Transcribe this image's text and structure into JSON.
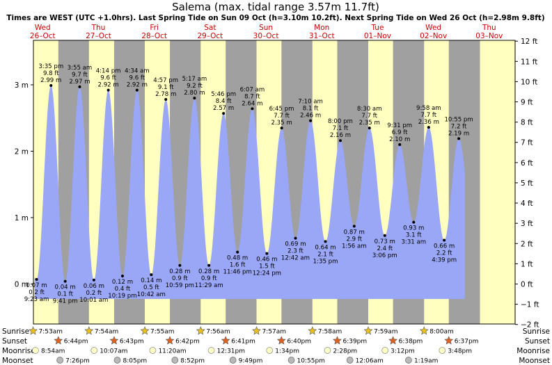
{
  "header": {
    "title": "Salema (max. tidal range 3.57m 11.7ft)",
    "subtitle": "Times are WEST (UTC +1.0hrs). Last Spring Tide on Sun 09 Oct (h=3.10m 10.2ft). Next Spring Tide on Wed 26 Oct (h=2.98m 9.8ft)"
  },
  "days": [
    {
      "name": "Wed",
      "date": "26–Oct"
    },
    {
      "name": "Thu",
      "date": "27–Oct"
    },
    {
      "name": "Fri",
      "date": "28–Oct"
    },
    {
      "name": "Sat",
      "date": "29–Oct"
    },
    {
      "name": "Sun",
      "date": "30–Oct"
    },
    {
      "name": "Mon",
      "date": "31–Oct"
    },
    {
      "name": "Tue",
      "date": "01–Nov"
    },
    {
      "name": "Wed",
      "date": "02–Nov"
    },
    {
      "name": "Thu",
      "date": "03–Nov"
    }
  ],
  "chart_data": {
    "type": "area",
    "title": "Salema (max. tidal range 3.57m 11.7ft)",
    "x_unit": "hours from 26-Oct 00:00 (WEST)",
    "y_left_unit": "m",
    "y_right_unit": "ft",
    "ylim_m": [
      -0.3,
      3.3
    ],
    "left_ticks": [
      "0 m",
      "1 m",
      "2 m",
      "3 m"
    ],
    "right_ticks": [
      "−2 ft",
      "−1 ft",
      "0 ft",
      "1 ft",
      "2 ft",
      "3 ft",
      "4 ft",
      "5 ft",
      "6 ft",
      "7 ft",
      "8 ft",
      "9 ft",
      "10 ft",
      "11 ft",
      "12 ft"
    ],
    "grid": false,
    "tides": [
      {
        "type": "high",
        "t": -3.5,
        "h": 2.95
      },
      {
        "type": "low",
        "t": 9.383,
        "h": 0.07,
        "time": "9:23 am",
        "m": "0.07 m",
        "ft": "0.2 ft"
      },
      {
        "type": "high",
        "t": 15.583,
        "h": 2.99,
        "time": "3:35 pm",
        "m": "2.99 m",
        "ft": "9.8 ft"
      },
      {
        "type": "low",
        "t": 21.683,
        "h": 0.04,
        "time": "9:41 pm",
        "m": "0.04 m",
        "ft": "0.1 ft"
      },
      {
        "type": "high",
        "t": 27.917,
        "h": 2.97,
        "time": "3:55 am",
        "m": "2.97 m",
        "ft": "9.7 ft"
      },
      {
        "type": "low",
        "t": 34.017,
        "h": 0.06,
        "time": "10:01 am",
        "m": "0.06 m",
        "ft": "0.2 ft"
      },
      {
        "type": "high",
        "t": 40.233,
        "h": 2.92,
        "time": "4:14 pm",
        "m": "2.92 m",
        "ft": "9.6 ft"
      },
      {
        "type": "low",
        "t": 46.317,
        "h": 0.12,
        "time": "10:19 pm",
        "m": "0.12 m",
        "ft": "0.4 ft"
      },
      {
        "type": "high",
        "t": 52.567,
        "h": 2.92,
        "time": "4:34 am",
        "m": "2.92 m",
        "ft": "9.6 ft"
      },
      {
        "type": "low",
        "t": 58.7,
        "h": 0.14,
        "time": "10:42 am",
        "m": "0.14 m",
        "ft": "0.5 ft"
      },
      {
        "type": "high",
        "t": 64.95,
        "h": 2.78,
        "time": "4:57 pm",
        "m": "2.78 m",
        "ft": "9.1 ft"
      },
      {
        "type": "low",
        "t": 70.983,
        "h": 0.28,
        "time": "10:59 pm",
        "m": "0.28 m",
        "ft": "0.9 ft"
      },
      {
        "type": "high",
        "t": 77.283,
        "h": 2.8,
        "time": "5:17 am",
        "m": "2.80 m",
        "ft": "9.2 ft"
      },
      {
        "type": "low",
        "t": 83.483,
        "h": 0.28,
        "time": "11:29 am",
        "m": "0.28 m",
        "ft": "0.9 ft"
      },
      {
        "type": "high",
        "t": 89.767,
        "h": 2.57,
        "time": "5:46 pm",
        "m": "2.57 m",
        "ft": "8.4 ft"
      },
      {
        "type": "low",
        "t": 95.767,
        "h": 0.48,
        "time": "11:46 pm",
        "m": "0.48 m",
        "ft": "1.6 ft"
      },
      {
        "type": "high",
        "t": 102.117,
        "h": 2.64,
        "time": "6:07 am",
        "m": "2.64 m",
        "ft": "8.7 ft"
      },
      {
        "type": "low",
        "t": 108.4,
        "h": 0.46,
        "time": "12:24 pm",
        "m": "0.46 m",
        "ft": "1.5 ft"
      },
      {
        "type": "high",
        "t": 114.75,
        "h": 2.35,
        "time": "6:45 pm",
        "m": "2.35 m",
        "ft": "7.7 ft"
      },
      {
        "type": "low",
        "t": 120.7,
        "h": 0.69,
        "time": "12:42 am",
        "m": "0.69 m",
        "ft": "2.3 ft"
      },
      {
        "type": "high",
        "t": 127.167,
        "h": 2.46,
        "time": "7:10 am",
        "m": "2.46 m",
        "ft": "8.1 ft"
      },
      {
        "type": "low",
        "t": 133.583,
        "h": 0.64,
        "time": "1:35 pm",
        "m": "0.64 m",
        "ft": "2.1 ft"
      },
      {
        "type": "high",
        "t": 140.0,
        "h": 2.16,
        "time": "8:00 pm",
        "m": "2.16 m",
        "ft": "7.1 ft"
      },
      {
        "type": "low",
        "t": 145.933,
        "h": 0.87,
        "time": "1:56 am",
        "m": "0.87 m",
        "ft": "2.9 ft"
      },
      {
        "type": "high",
        "t": 152.5,
        "h": 2.35,
        "time": "8:30 am",
        "m": "2.35 m",
        "ft": "7.7 ft"
      },
      {
        "type": "low",
        "t": 159.1,
        "h": 0.73,
        "time": "3:06 pm",
        "m": "0.73 m",
        "ft": "2.4 ft"
      },
      {
        "type": "high",
        "t": 165.517,
        "h": 2.1,
        "time": "9:31 pm",
        "m": "2.10 m",
        "ft": "6.9 ft"
      },
      {
        "type": "low",
        "t": 171.517,
        "h": 0.93,
        "time": "3:31 am",
        "m": "0.93 m",
        "ft": "3.1 ft"
      },
      {
        "type": "high",
        "t": 177.967,
        "h": 2.36,
        "time": "9:58 am",
        "m": "2.36 m",
        "ft": "7.7 ft"
      },
      {
        "type": "low",
        "t": 184.65,
        "h": 0.66,
        "time": "4:39 pm",
        "m": "0.66 m",
        "ft": "2.2 ft"
      },
      {
        "type": "high",
        "t": 190.917,
        "h": 2.19,
        "time": "10:55 pm",
        "m": "2.19 m",
        "ft": "7.2 ft"
      },
      {
        "type": "low",
        "t": 197.0,
        "h": 0.9
      }
    ],
    "daylight": [
      {
        "rise": 7.883,
        "set": 18.733
      },
      {
        "rise": 31.9,
        "set": 42.717
      },
      {
        "rise": 55.917,
        "set": 66.7
      },
      {
        "rise": 79.933,
        "set": 90.683
      },
      {
        "rise": 103.95,
        "set": 114.667
      },
      {
        "rise": 127.967,
        "set": 138.65
      },
      {
        "rise": 151.983,
        "set": 162.633
      },
      {
        "rise": 176.0,
        "set": 186.617
      }
    ]
  },
  "bottom_rows": {
    "labels": {
      "sunrise": "Sunrise",
      "sunset": "Sunset",
      "moonrise": "Moonrise",
      "moonset": "Moonset"
    },
    "sunrise": [
      {
        "t": 7.883,
        "label": "7:53am"
      },
      {
        "t": 31.9,
        "label": "7:54am"
      },
      {
        "t": 55.917,
        "label": "7:55am"
      },
      {
        "t": 79.933,
        "label": "7:56am"
      },
      {
        "t": 103.95,
        "label": "7:57am"
      },
      {
        "t": 127.967,
        "label": "7:58am"
      },
      {
        "t": 151.983,
        "label": "7:59am"
      },
      {
        "t": 176.0,
        "label": "8:00am"
      }
    ],
    "sunset": [
      {
        "t": 18.733,
        "label": "6:44pm"
      },
      {
        "t": 42.717,
        "label": "6:43pm"
      },
      {
        "t": 66.7,
        "label": "6:42pm"
      },
      {
        "t": 90.683,
        "label": "6:41pm"
      },
      {
        "t": 114.667,
        "label": "6:40pm"
      },
      {
        "t": 138.65,
        "label": "6:39pm"
      },
      {
        "t": 162.633,
        "label": "6:38pm"
      },
      {
        "t": 186.617,
        "label": "6:37pm"
      }
    ],
    "moonrise": [
      {
        "t": 8.9,
        "label": "8:54am"
      },
      {
        "t": 34.117,
        "label": "10:07am"
      },
      {
        "t": 59.333,
        "label": "11:20am"
      },
      {
        "t": 84.517,
        "label": "12:31pm"
      },
      {
        "t": 109.567,
        "label": "1:34pm"
      },
      {
        "t": 134.467,
        "label": "2:28pm"
      },
      {
        "t": 159.2,
        "label": "3:12pm"
      },
      {
        "t": 183.8,
        "label": "3:48pm"
      }
    ],
    "moonset": [
      {
        "t": 19.433,
        "label": "7:26pm"
      },
      {
        "t": 44.083,
        "label": "8:05pm"
      },
      {
        "t": 68.867,
        "label": "8:52pm"
      },
      {
        "t": 93.817,
        "label": "9:49pm"
      },
      {
        "t": 118.917,
        "label": "10:55pm"
      },
      {
        "t": 144.1,
        "label": "12:06am"
      },
      {
        "t": 169.317,
        "label": "1:19am"
      }
    ]
  },
  "colors": {
    "night": "#a0a0a0",
    "day": "#ffffc0",
    "tide": "#9aa6f6",
    "sun": "#e8c020",
    "sunset_star": "#e06020",
    "moonrise": "#ffffc8",
    "moonset": "#b8b8b8",
    "day_label": "#cc0000"
  }
}
